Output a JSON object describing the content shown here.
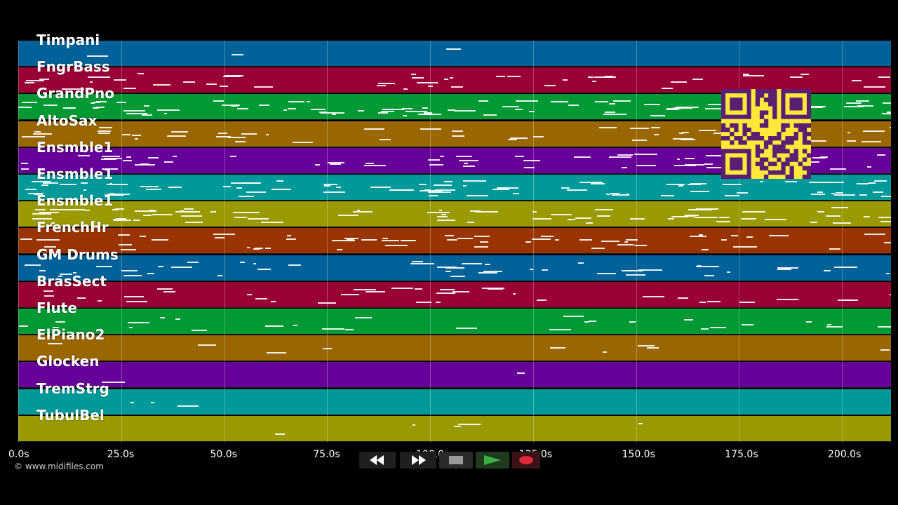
{
  "tracks": [
    {
      "name": "Timpani",
      "color": "#006298"
    },
    {
      "name": "FngrBass",
      "color": "#990033"
    },
    {
      "name": "GrandPno",
      "color": "#009933"
    },
    {
      "name": "AltoSax",
      "color": "#996600"
    },
    {
      "name": "Ensmble1",
      "color": "#660099"
    },
    {
      "name": "Ensmble1",
      "color": "#009999"
    },
    {
      "name": "Ensmble1",
      "color": "#999900"
    },
    {
      "name": "FrenchHr",
      "color": "#993300"
    },
    {
      "name": "GM Drums",
      "color": "#006298"
    },
    {
      "name": "BrasSect",
      "color": "#990033"
    },
    {
      "name": "Flute",
      "color": "#009933"
    },
    {
      "name": "ElPiano2",
      "color": "#996600"
    },
    {
      "name": "Glocken",
      "color": "#660099"
    },
    {
      "name": "TremStrg",
      "color": "#009999"
    },
    {
      "name": "TubulBel",
      "color": "#999900"
    }
  ],
  "timeline": {
    "ticks": [
      "0.0s",
      "25.0s",
      "50.0s",
      "75.0s",
      "100.0s",
      "125.0s",
      "150.0s",
      "175.0s",
      "200.0s"
    ],
    "duration_seconds": 212
  },
  "transport": {
    "rewind": "rewind-icon",
    "fast_forward": "fast-forward-icon",
    "stop": "stop-icon",
    "play": "play-icon",
    "record": "record-icon",
    "play_color": "#3cb043",
    "record_color": "#e0283c"
  },
  "copyright": "© www.midifiles.com",
  "qr_color": "#ffe83a"
}
